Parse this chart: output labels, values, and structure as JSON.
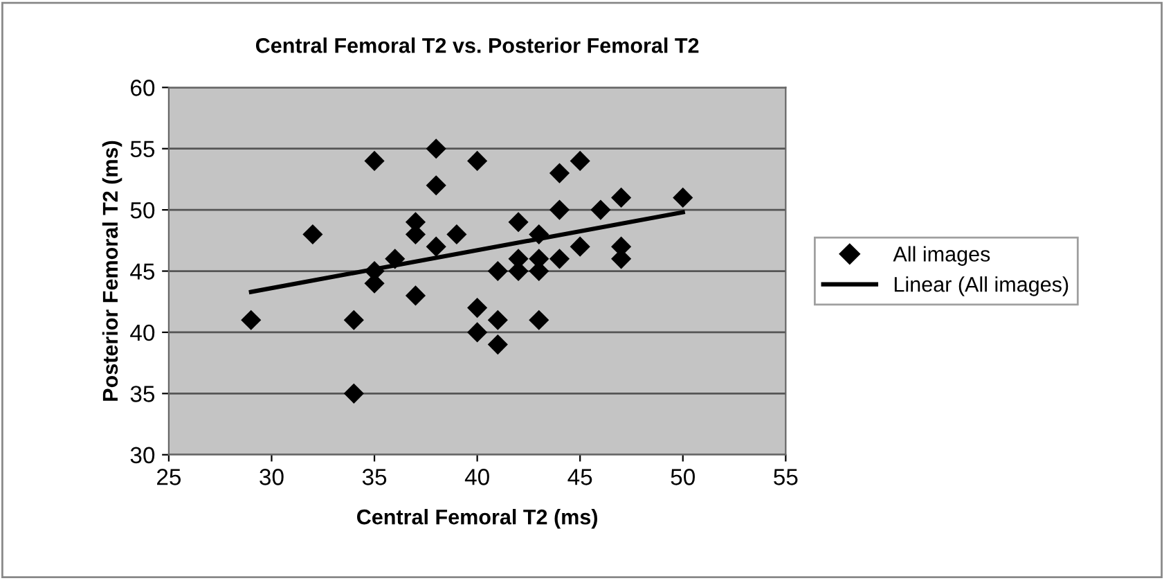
{
  "chart_data": {
    "type": "scatter",
    "title": "Central Femoral T2 vs. Posterior Femoral T2",
    "xlabel": "Central Femoral T2 (ms)",
    "ylabel": "Posterior Femoral T2 (ms)",
    "xlim": [
      25,
      55
    ],
    "xticks": [
      25,
      30,
      35,
      40,
      45,
      50,
      55
    ],
    "ylim": [
      30,
      60
    ],
    "yticks": [
      30,
      35,
      40,
      45,
      50,
      55,
      60
    ],
    "grid": "y",
    "legend": "right",
    "series": [
      {
        "name": "All images",
        "marker": "diamond",
        "color": "#000000",
        "x": [
          29,
          32,
          34,
          34,
          35,
          35,
          35,
          36,
          37,
          37,
          37,
          38,
          38,
          38,
          39,
          40,
          40,
          40,
          41,
          41,
          41,
          42,
          42,
          42,
          43,
          43,
          43,
          43,
          44,
          44,
          44,
          45,
          45,
          46,
          47,
          47,
          47,
          50
        ],
        "values": [
          41,
          48,
          41,
          35,
          54,
          45,
          44,
          46,
          49,
          48,
          43,
          55,
          52,
          47,
          48,
          54,
          42,
          40,
          45,
          41,
          39,
          49,
          46,
          45,
          48,
          46,
          45,
          41,
          53,
          50,
          46,
          54,
          47,
          50,
          51,
          47,
          46,
          51
        ]
      },
      {
        "name": "Linear (All images)",
        "type": "line",
        "marker": "none",
        "line_style": "solid",
        "color": "#000000",
        "x": [
          29,
          50
        ],
        "values": [
          43.3,
          49.8
        ]
      }
    ]
  }
}
